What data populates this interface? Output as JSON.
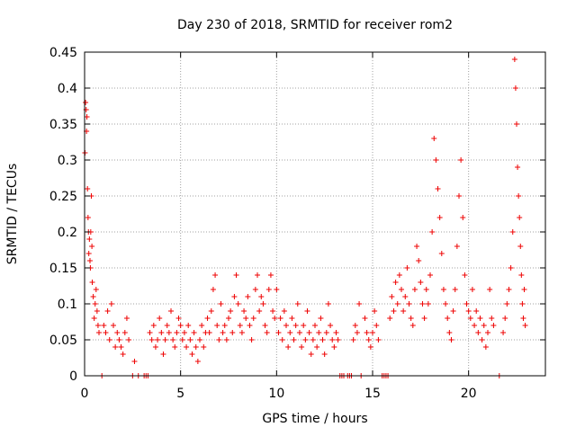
{
  "chart_data": {
    "type": "scatter",
    "title": "Day 230 of 2018, SRMTID for receiver rom2",
    "xlabel": "GPS time / hours",
    "ylabel": "SRMTID / TECUs",
    "xlim": [
      0,
      24
    ],
    "ylim": [
      0,
      0.45
    ],
    "xticks": [
      "0",
      "5",
      "10",
      "15",
      "20"
    ],
    "xtick_values": [
      0,
      5,
      10,
      15,
      20
    ],
    "yticks": [
      "0",
      "0.05",
      "0.1",
      "0.15",
      "0.2",
      "0.25",
      "0.3",
      "0.35",
      "0.4",
      "0.45"
    ],
    "ytick_values": [
      0,
      0.05,
      0.1,
      0.15,
      0.2,
      0.25,
      0.3,
      0.35,
      0.4,
      0.45
    ],
    "grid": true,
    "marker": "+",
    "color": "#ee0000",
    "series": [
      {
        "name": "SRMTID",
        "points": [
          [
            0.02,
            0.31
          ],
          [
            0.05,
            0.38
          ],
          [
            0.08,
            0.37
          ],
          [
            0.1,
            0.34
          ],
          [
            0.12,
            0.36
          ],
          [
            0.15,
            0.26
          ],
          [
            0.18,
            0.22
          ],
          [
            0.2,
            0.2
          ],
          [
            0.22,
            0.17
          ],
          [
            0.25,
            0.19
          ],
          [
            0.28,
            0.16
          ],
          [
            0.3,
            0.15
          ],
          [
            0.32,
            0.2
          ],
          [
            0.35,
            0.25
          ],
          [
            0.38,
            0.18
          ],
          [
            0.4,
            0.13
          ],
          [
            0.45,
            0.11
          ],
          [
            0.5,
            0.08
          ],
          [
            0.55,
            0.1
          ],
          [
            0.6,
            0.12
          ],
          [
            0.65,
            0.09
          ],
          [
            0.7,
            0.07
          ],
          [
            0.75,
            0.06
          ],
          [
            0.9,
            0.0
          ],
          [
            1.0,
            0.07
          ],
          [
            1.1,
            0.06
          ],
          [
            1.2,
            0.09
          ],
          [
            1.3,
            0.05
          ],
          [
            1.4,
            0.1
          ],
          [
            1.5,
            0.07
          ],
          [
            1.6,
            0.04
          ],
          [
            1.7,
            0.06
          ],
          [
            1.8,
            0.05
          ],
          [
            1.9,
            0.04
          ],
          [
            2.0,
            0.03
          ],
          [
            2.1,
            0.06
          ],
          [
            2.2,
            0.08
          ],
          [
            2.3,
            0.05
          ],
          [
            2.5,
            0.0
          ],
          [
            2.6,
            0.02
          ],
          [
            2.8,
            0.0
          ],
          [
            3.1,
            0.0
          ],
          [
            3.2,
            0.0
          ],
          [
            3.3,
            0.0
          ],
          [
            3.4,
            0.06
          ],
          [
            3.5,
            0.05
          ],
          [
            3.6,
            0.07
          ],
          [
            3.7,
            0.04
          ],
          [
            3.8,
            0.05
          ],
          [
            3.9,
            0.08
          ],
          [
            4.0,
            0.06
          ],
          [
            4.1,
            0.03
          ],
          [
            4.2,
            0.05
          ],
          [
            4.3,
            0.07
          ],
          [
            4.4,
            0.06
          ],
          [
            4.5,
            0.09
          ],
          [
            4.6,
            0.05
          ],
          [
            4.7,
            0.04
          ],
          [
            4.8,
            0.06
          ],
          [
            4.9,
            0.08
          ],
          [
            5.0,
            0.07
          ],
          [
            5.1,
            0.05
          ],
          [
            5.2,
            0.06
          ],
          [
            5.3,
            0.04
          ],
          [
            5.4,
            0.07
          ],
          [
            5.5,
            0.05
          ],
          [
            5.6,
            0.03
          ],
          [
            5.7,
            0.06
          ],
          [
            5.8,
            0.04
          ],
          [
            5.9,
            0.02
          ],
          [
            6.0,
            0.05
          ],
          [
            6.1,
            0.07
          ],
          [
            6.2,
            0.04
          ],
          [
            6.3,
            0.06
          ],
          [
            6.4,
            0.08
          ],
          [
            6.5,
            0.06
          ],
          [
            6.6,
            0.09
          ],
          [
            6.7,
            0.12
          ],
          [
            6.8,
            0.14
          ],
          [
            6.9,
            0.07
          ],
          [
            7.0,
            0.05
          ],
          [
            7.1,
            0.1
          ],
          [
            7.2,
            0.06
          ],
          [
            7.3,
            0.07
          ],
          [
            7.4,
            0.05
          ],
          [
            7.5,
            0.08
          ],
          [
            7.6,
            0.09
          ],
          [
            7.7,
            0.06
          ],
          [
            7.8,
            0.11
          ],
          [
            7.9,
            0.14
          ],
          [
            8.0,
            0.1
          ],
          [
            8.1,
            0.07
          ],
          [
            8.2,
            0.06
          ],
          [
            8.3,
            0.09
          ],
          [
            8.4,
            0.08
          ],
          [
            8.5,
            0.11
          ],
          [
            8.6,
            0.07
          ],
          [
            8.7,
            0.05
          ],
          [
            8.8,
            0.08
          ],
          [
            8.9,
            0.12
          ],
          [
            9.0,
            0.14
          ],
          [
            9.1,
            0.09
          ],
          [
            9.2,
            0.11
          ],
          [
            9.3,
            0.1
          ],
          [
            9.4,
            0.07
          ],
          [
            9.5,
            0.06
          ],
          [
            9.6,
            0.12
          ],
          [
            9.7,
            0.14
          ],
          [
            9.8,
            0.09
          ],
          [
            9.9,
            0.08
          ],
          [
            10.0,
            0.12
          ],
          [
            10.1,
            0.06
          ],
          [
            10.2,
            0.08
          ],
          [
            10.3,
            0.05
          ],
          [
            10.4,
            0.09
          ],
          [
            10.5,
            0.07
          ],
          [
            10.6,
            0.04
          ],
          [
            10.7,
            0.06
          ],
          [
            10.8,
            0.08
          ],
          [
            10.9,
            0.05
          ],
          [
            11.0,
            0.07
          ],
          [
            11.1,
            0.1
          ],
          [
            11.2,
            0.06
          ],
          [
            11.3,
            0.04
          ],
          [
            11.4,
            0.07
          ],
          [
            11.5,
            0.05
          ],
          [
            11.6,
            0.09
          ],
          [
            11.7,
            0.06
          ],
          [
            11.8,
            0.03
          ],
          [
            11.9,
            0.05
          ],
          [
            12.0,
            0.07
          ],
          [
            12.1,
            0.04
          ],
          [
            12.2,
            0.06
          ],
          [
            12.3,
            0.08
          ],
          [
            12.4,
            0.05
          ],
          [
            12.5,
            0.03
          ],
          [
            12.6,
            0.06
          ],
          [
            12.7,
            0.1
          ],
          [
            12.8,
            0.07
          ],
          [
            12.9,
            0.05
          ],
          [
            13.0,
            0.04
          ],
          [
            13.1,
            0.06
          ],
          [
            13.2,
            0.05
          ],
          [
            13.3,
            0.0
          ],
          [
            13.4,
            0.0
          ],
          [
            13.5,
            0.0
          ],
          [
            13.7,
            0.0
          ],
          [
            13.8,
            0.0
          ],
          [
            13.9,
            0.0
          ],
          [
            14.0,
            0.05
          ],
          [
            14.1,
            0.07
          ],
          [
            14.2,
            0.06
          ],
          [
            14.3,
            0.1
          ],
          [
            14.4,
            0.0
          ],
          [
            14.6,
            0.08
          ],
          [
            14.7,
            0.06
          ],
          [
            14.8,
            0.05
          ],
          [
            14.9,
            0.04
          ],
          [
            15.0,
            0.06
          ],
          [
            15.1,
            0.09
          ],
          [
            15.2,
            0.07
          ],
          [
            15.3,
            0.05
          ],
          [
            15.5,
            0.0
          ],
          [
            15.6,
            0.0
          ],
          [
            15.7,
            0.0
          ],
          [
            15.8,
            0.0
          ],
          [
            15.9,
            0.08
          ],
          [
            16.0,
            0.11
          ],
          [
            16.1,
            0.09
          ],
          [
            16.2,
            0.13
          ],
          [
            16.3,
            0.1
          ],
          [
            16.4,
            0.14
          ],
          [
            16.5,
            0.12
          ],
          [
            16.6,
            0.09
          ],
          [
            16.7,
            0.11
          ],
          [
            16.8,
            0.15
          ],
          [
            16.9,
            0.1
          ],
          [
            17.0,
            0.08
          ],
          [
            17.1,
            0.07
          ],
          [
            17.2,
            0.12
          ],
          [
            17.3,
            0.18
          ],
          [
            17.4,
            0.16
          ],
          [
            17.5,
            0.13
          ],
          [
            17.6,
            0.1
          ],
          [
            17.7,
            0.08
          ],
          [
            17.8,
            0.12
          ],
          [
            17.9,
            0.1
          ],
          [
            18.0,
            0.14
          ],
          [
            18.1,
            0.2
          ],
          [
            18.2,
            0.33
          ],
          [
            18.3,
            0.3
          ],
          [
            18.4,
            0.26
          ],
          [
            18.5,
            0.22
          ],
          [
            18.6,
            0.17
          ],
          [
            18.7,
            0.12
          ],
          [
            18.8,
            0.1
          ],
          [
            18.9,
            0.08
          ],
          [
            19.0,
            0.06
          ],
          [
            19.1,
            0.05
          ],
          [
            19.2,
            0.09
          ],
          [
            19.3,
            0.12
          ],
          [
            19.4,
            0.18
          ],
          [
            19.5,
            0.25
          ],
          [
            19.6,
            0.3
          ],
          [
            19.7,
            0.22
          ],
          [
            19.8,
            0.14
          ],
          [
            19.9,
            0.1
          ],
          [
            20.0,
            0.09
          ],
          [
            20.1,
            0.08
          ],
          [
            20.2,
            0.12
          ],
          [
            20.3,
            0.07
          ],
          [
            20.4,
            0.09
          ],
          [
            20.5,
            0.06
          ],
          [
            20.6,
            0.08
          ],
          [
            20.7,
            0.05
          ],
          [
            20.8,
            0.07
          ],
          [
            20.9,
            0.04
          ],
          [
            21.0,
            0.06
          ],
          [
            21.1,
            0.12
          ],
          [
            21.2,
            0.08
          ],
          [
            21.3,
            0.07
          ],
          [
            21.6,
            0.0
          ],
          [
            21.8,
            0.06
          ],
          [
            21.9,
            0.08
          ],
          [
            22.0,
            0.1
          ],
          [
            22.1,
            0.12
          ],
          [
            22.2,
            0.15
          ],
          [
            22.3,
            0.2
          ],
          [
            22.4,
            0.44
          ],
          [
            22.45,
            0.4
          ],
          [
            22.5,
            0.35
          ],
          [
            22.55,
            0.29
          ],
          [
            22.6,
            0.25
          ],
          [
            22.65,
            0.22
          ],
          [
            22.7,
            0.18
          ],
          [
            22.75,
            0.14
          ],
          [
            22.8,
            0.1
          ],
          [
            22.85,
            0.08
          ],
          [
            22.9,
            0.12
          ],
          [
            22.95,
            0.07
          ]
        ]
      }
    ]
  }
}
